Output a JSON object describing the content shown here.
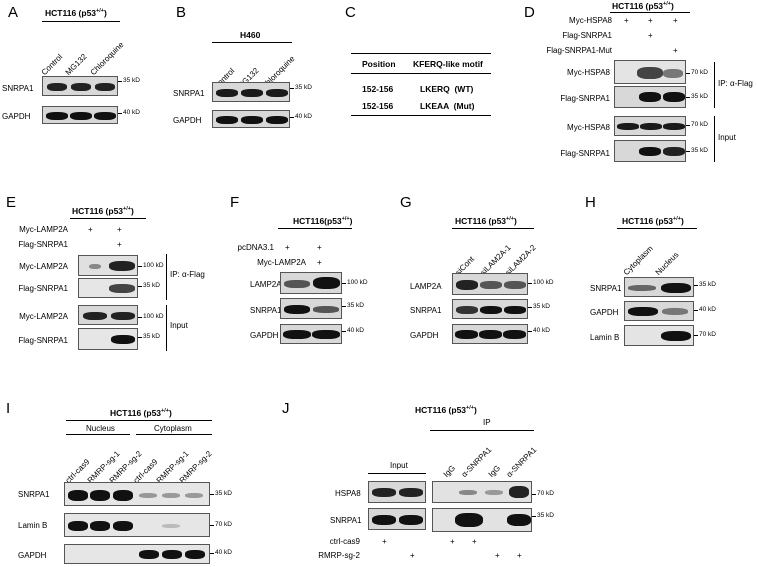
{
  "panels": {
    "A": {
      "letter": "A",
      "title": "HCT116 (p53",
      "title_sup": "+/+",
      "title_end": ")",
      "lanes": [
        "Control",
        "MG132",
        "Chloroquine"
      ],
      "rows": [
        "SNRPA1",
        "GAPDH"
      ],
      "markers": [
        "35 kD",
        "40 kD"
      ]
    },
    "B": {
      "letter": "B",
      "title": "H460",
      "lanes": [
        "Control",
        "MG132",
        "Chloroquine"
      ],
      "rows": [
        "SNRPA1",
        "GAPDH"
      ],
      "markers": [
        "35 kD",
        "40 kD"
      ]
    },
    "C": {
      "letter": "C",
      "headers": [
        "Position",
        "KFERQ-like motif"
      ],
      "rows": [
        {
          "position": "152-156",
          "motif": "LKERQ  (WT)"
        },
        {
          "position": "152-156",
          "motif": "LKEAA  (Mut)"
        }
      ]
    },
    "D": {
      "letter": "D",
      "title": "HCT116 (p53",
      "title_sup": "+/+",
      "title_end": ")",
      "conditions": [
        {
          "label": "Myc-HSPA8",
          "signs": [
            "+",
            "+",
            "+"
          ]
        },
        {
          "label": "Flag-SNRPA1",
          "signs": [
            "",
            "+",
            ""
          ]
        },
        {
          "label": "Flag-SNRPA1-Mut",
          "signs": [
            "",
            "",
            "+"
          ]
        }
      ],
      "rows": [
        "Myc-HSPA8",
        "Flag-SNRPA1",
        "Myc-HSPA8",
        "Flag-SNRPA1"
      ],
      "markers": [
        "70 kD",
        "35 kD",
        "70 kD",
        "35 kD"
      ],
      "groups": [
        "IP: α-Flag",
        "Input"
      ]
    },
    "E": {
      "letter": "E",
      "title": "HCT116 (p53",
      "title_sup": "+/+",
      "title_end": ")",
      "conditions": [
        {
          "label": "Myc-LAMP2A",
          "signs": [
            "+",
            "+"
          ]
        },
        {
          "label": "Flag-SNRPA1",
          "signs": [
            "",
            "+"
          ]
        }
      ],
      "rows": [
        "Myc-LAMP2A",
        "Flag-SNRPA1",
        "Myc-LAMP2A",
        "Flag-SNRPA1"
      ],
      "markers": [
        "100 kD",
        "35 kD",
        "100 kD",
        "35 kD"
      ],
      "groups": [
        "IP: α-Flag",
        "Input"
      ]
    },
    "F": {
      "letter": "F",
      "title": "HCT116(p53",
      "title_sup": "+/+",
      "title_end": ")",
      "conditions": [
        {
          "label": "pcDNA3.1",
          "signs": [
            "+",
            "+"
          ]
        },
        {
          "label": "Myc-LAMP2A",
          "signs": [
            "",
            "+"
          ]
        }
      ],
      "rows": [
        "LAMP2A",
        "SNRPA1",
        "GAPDH"
      ],
      "markers": [
        "100 kD",
        "35 kD",
        "40 kD"
      ]
    },
    "G": {
      "letter": "G",
      "title": "HCT116 (p53",
      "title_sup": "+/+",
      "title_end": ")",
      "lanes": [
        "siCont",
        "siLAM2A-1",
        "siLAM2A-2"
      ],
      "rows": [
        "LAMP2A",
        "SNRPA1",
        "GAPDH"
      ],
      "markers": [
        "100 kD",
        "35 kD",
        "40 kD"
      ]
    },
    "H": {
      "letter": "H",
      "title": "HCT116 (p53",
      "title_sup": "+/+",
      "title_end": ")",
      "lanes": [
        "Cytoplasm",
        "Nucleus"
      ],
      "rows": [
        "SNRPA1",
        "GAPDH",
        "Lamin B"
      ],
      "markers": [
        "35 kD",
        "40 kD",
        "70 kD"
      ]
    },
    "I": {
      "letter": "I",
      "title": "HCT116 (p53",
      "title_sup": "+/+",
      "title_end": ")",
      "groups": [
        "Nucleus",
        "Cytoplasm"
      ],
      "lanes": [
        "ctrl-cas9",
        "RMRP-sg-1",
        "RMRP-sg-2",
        "ctrl-cas9",
        "RMRP-sg-1",
        "RMRP-sg-2"
      ],
      "rows": [
        "SNRPA1",
        "Lamin B",
        "GAPDH"
      ],
      "markers": [
        "35 kD",
        "70 kD",
        "40 kD"
      ]
    },
    "J": {
      "letter": "J",
      "title": "HCT116 (p53",
      "title_sup": "+/+",
      "title_end": ")",
      "input_label": "Input",
      "ip_label": "IP",
      "ip_lanes": [
        "IgG",
        "α-SNRPA1",
        "IgG",
        "α-SNRPA1"
      ],
      "rows": [
        "HSPA8",
        "SNRPA1"
      ],
      "markers": [
        "70 kD",
        "35 kD"
      ],
      "conditions": [
        {
          "label": "ctrl-cas9",
          "signs": [
            "+",
            "",
            "+",
            "+",
            "",
            ""
          ]
        },
        {
          "label": "RMRP-sg-2",
          "signs": [
            "",
            "+",
            "",
            "",
            "+",
            "+"
          ]
        }
      ]
    }
  }
}
